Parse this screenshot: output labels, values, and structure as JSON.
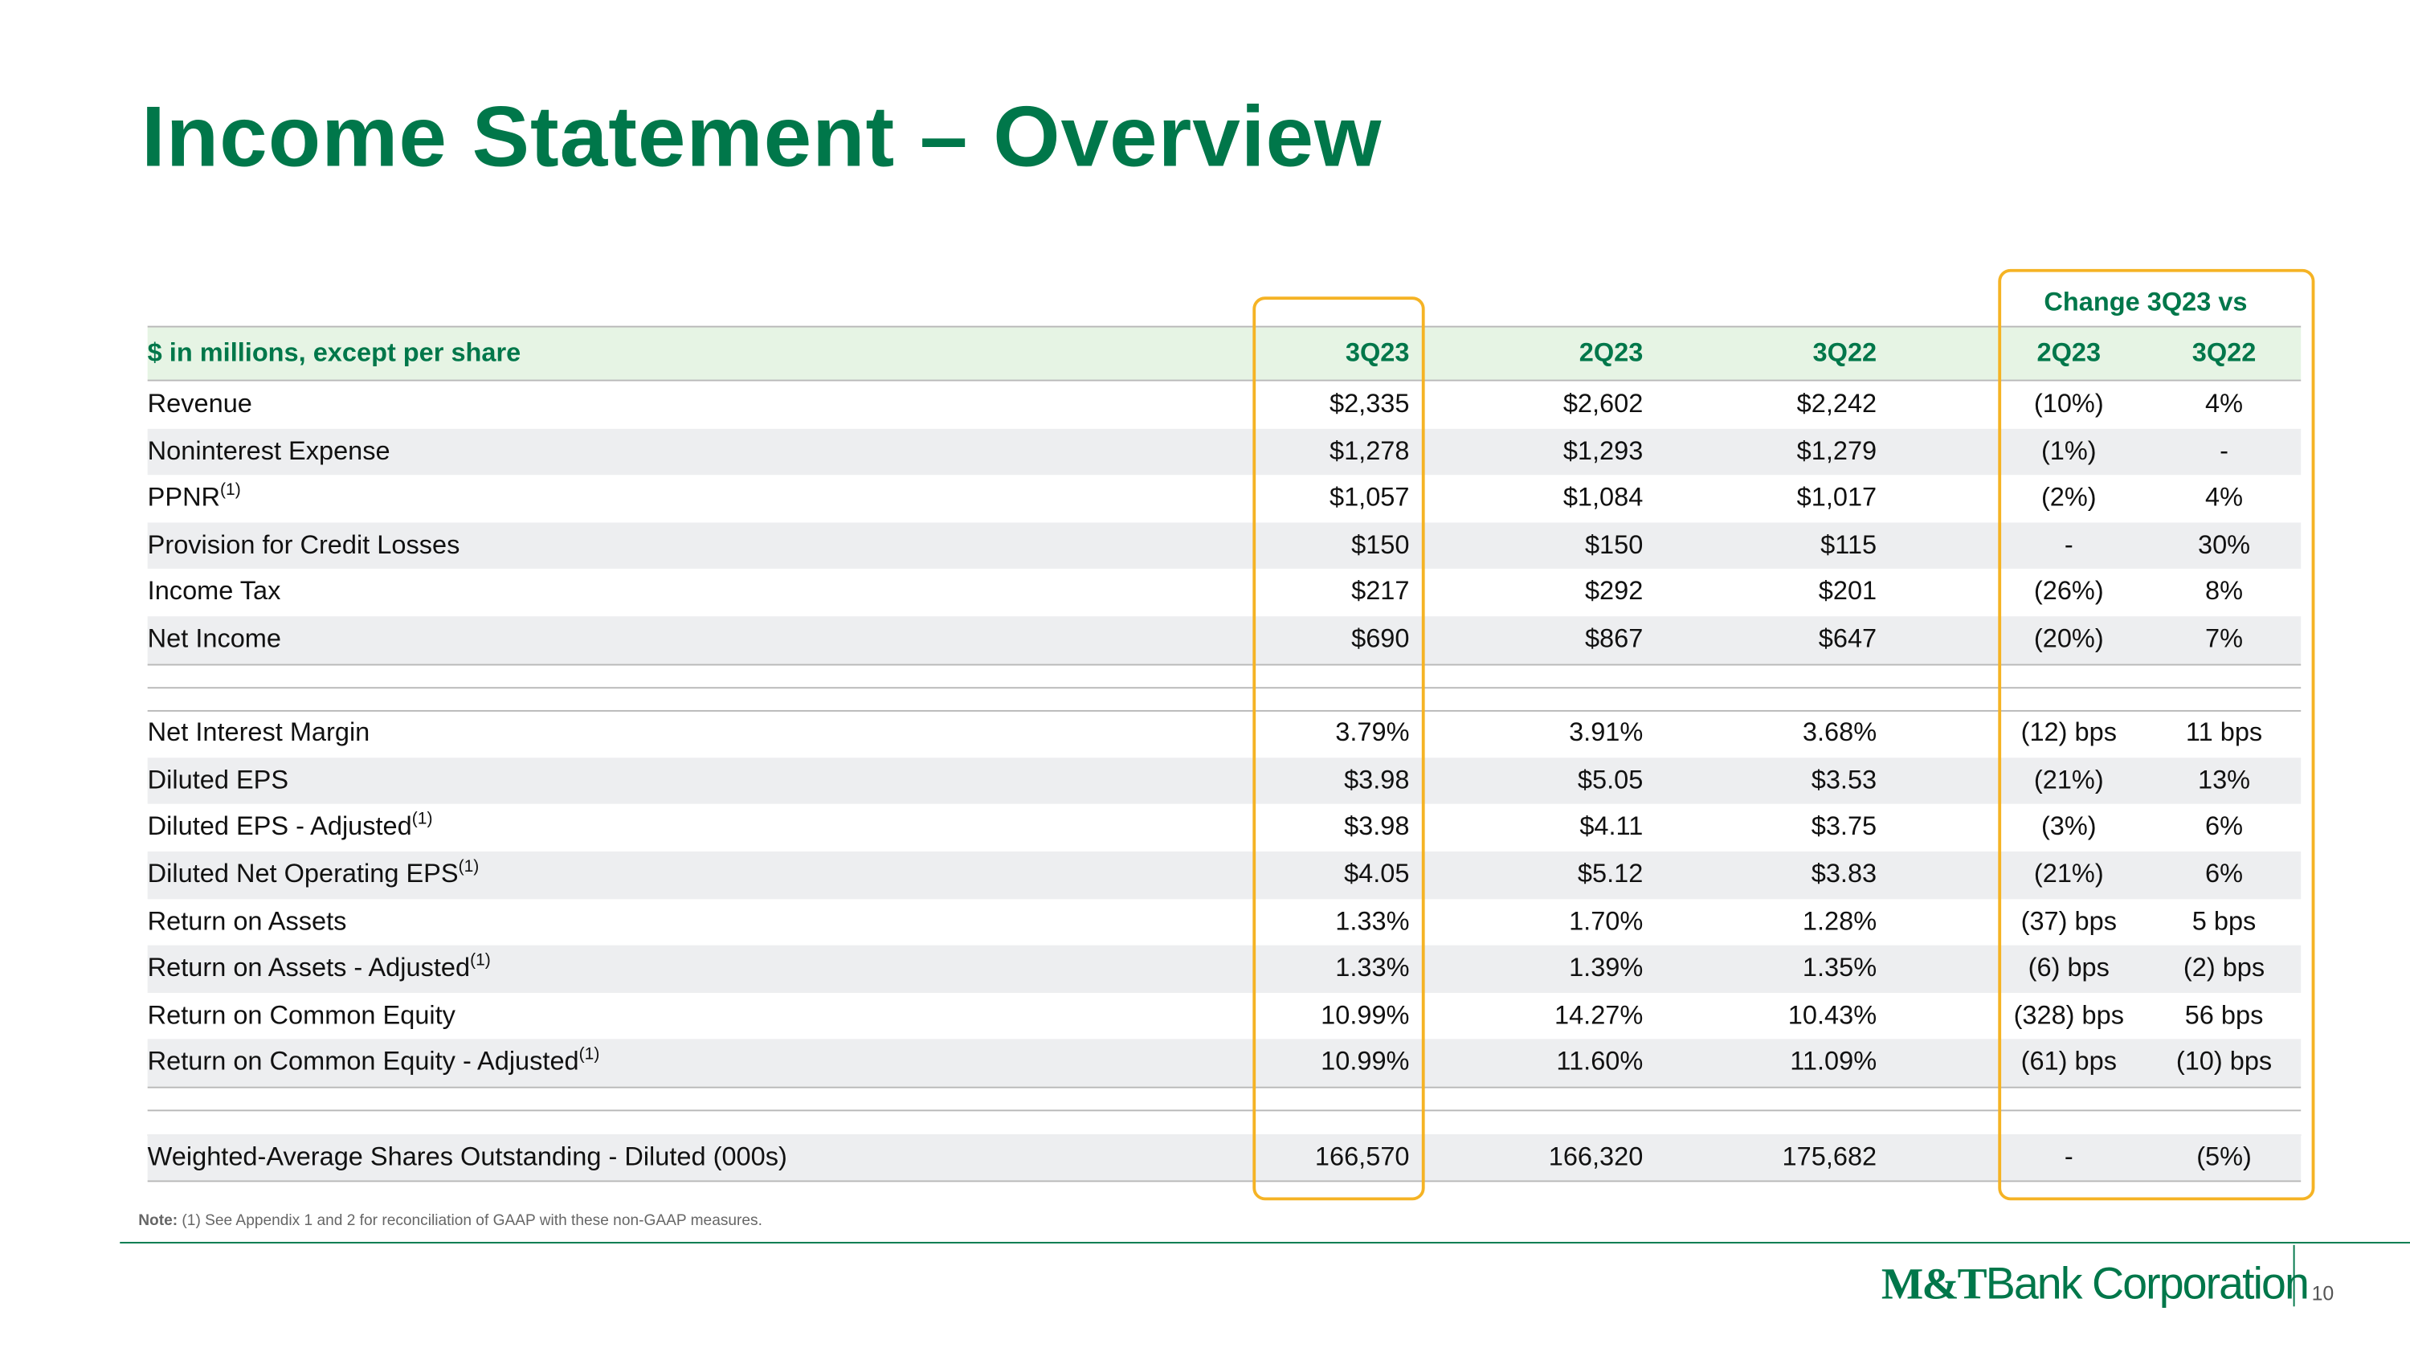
{
  "title": "Income Statement – Overview",
  "table": {
    "change_header": "Change 3Q23 vs",
    "columns": [
      "$ in millions, except per share",
      "3Q23",
      "2Q23",
      "3Q22",
      "2Q23",
      "3Q22"
    ],
    "sections": [
      [
        {
          "label": "Revenue",
          "values": [
            "$2,335",
            "$2,602",
            "$2,242",
            "(10%)",
            "4%"
          ]
        },
        {
          "label": "Noninterest Expense",
          "values": [
            "$1,278",
            "$1,293",
            "$1,279",
            "(1%)",
            "-"
          ]
        },
        {
          "label": "PPNR",
          "sup": "(1)",
          "values": [
            "$1,057",
            "$1,084",
            "$1,017",
            "(2%)",
            "4%"
          ]
        },
        {
          "label": "Provision for Credit Losses",
          "values": [
            "$150",
            "$150",
            "$115",
            "-",
            "30%"
          ]
        },
        {
          "label": "Income Tax",
          "values": [
            "$217",
            "$292",
            "$201",
            "(26%)",
            "8%"
          ]
        },
        {
          "label": "Net Income",
          "values": [
            "$690",
            "$867",
            "$647",
            "(20%)",
            "7%"
          ]
        }
      ],
      [
        {
          "label": "Net Interest Margin",
          "values": [
            "3.79%",
            "3.91%",
            "3.68%",
            "(12) bps",
            "11 bps"
          ]
        },
        {
          "label": "Diluted EPS",
          "values": [
            "$3.98",
            "$5.05",
            "$3.53",
            "(21%)",
            "13%"
          ]
        },
        {
          "label": "Diluted EPS - Adjusted",
          "sup": "(1)",
          "values": [
            "$3.98",
            "$4.11",
            "$3.75",
            "(3%)",
            "6%"
          ]
        },
        {
          "label": "Diluted Net Operating EPS",
          "sup": "(1)",
          "values": [
            "$4.05",
            "$5.12",
            "$3.83",
            "(21%)",
            "6%"
          ]
        },
        {
          "label": "Return on Assets",
          "values": [
            "1.33%",
            "1.70%",
            "1.28%",
            "(37) bps",
            "5 bps"
          ]
        },
        {
          "label": "Return on Assets - Adjusted",
          "sup": "(1)",
          "values": [
            "1.33%",
            "1.39%",
            "1.35%",
            "(6) bps",
            "(2) bps"
          ]
        },
        {
          "label": "Return on Common Equity",
          "values": [
            "10.99%",
            "14.27%",
            "10.43%",
            "(328) bps",
            "56 bps"
          ]
        },
        {
          "label": "Return on Common Equity - Adjusted",
          "sup": "(1)",
          "values": [
            "10.99%",
            "11.60%",
            "11.09%",
            "(61) bps",
            "(10) bps"
          ]
        }
      ],
      [
        {
          "label": "Weighted-Average Shares Outstanding - Diluted (000s)",
          "values": [
            "166,570",
            "166,320",
            "175,682",
            "-",
            "(5%)"
          ]
        }
      ]
    ]
  },
  "note": {
    "label": "Note:",
    "text": "(1) See Appendix 1 and 2 for reconciliation of GAAP with these non-GAAP measures."
  },
  "footer": {
    "logo_mark": "M&T",
    "logo_text": "Bank Corporation",
    "page": "10"
  }
}
